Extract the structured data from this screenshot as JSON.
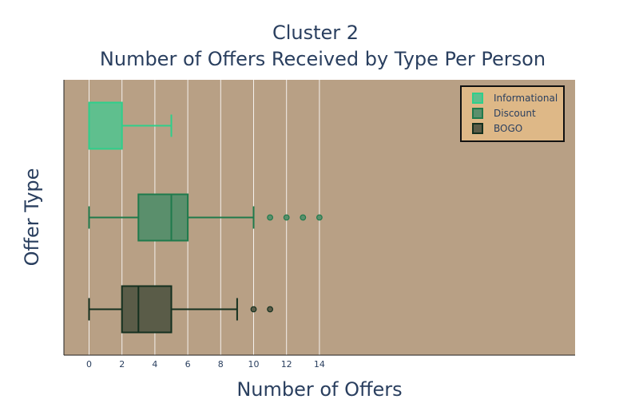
{
  "chart_data": {
    "type": "box",
    "orientation": "horizontal",
    "title": "Cluster 2",
    "subtitle": "Number of Offers Received by Type Per Person",
    "xlabel": "Number of Offers",
    "ylabel": "Offer Type",
    "xlim": [
      -0.75,
      14.8
    ],
    "xticks": [
      0,
      2,
      4,
      6,
      8,
      10,
      12,
      14
    ],
    "grid": true,
    "legend_position": "top-right",
    "plot_background": "#b8a085",
    "legend_background": "#deb887",
    "series": [
      {
        "name": "Informational",
        "color": "#2ecf8b",
        "fill": "#5fbf8e",
        "min": 0,
        "q1": 0,
        "median": 0,
        "q3": 2,
        "max": 5,
        "outliers": []
      },
      {
        "name": "Discount",
        "color": "#1f7a4c",
        "fill": "#5a8f6c",
        "min": 0,
        "q1": 3,
        "median": 5,
        "q3": 6,
        "max": 10,
        "outliers": [
          11,
          12,
          13,
          14
        ]
      },
      {
        "name": "BOGO",
        "color": "#14301f",
        "fill": "#5a5c48",
        "min": 0,
        "q1": 2,
        "median": 3,
        "q3": 5,
        "max": 9,
        "outliers": [
          10,
          11
        ]
      }
    ]
  }
}
